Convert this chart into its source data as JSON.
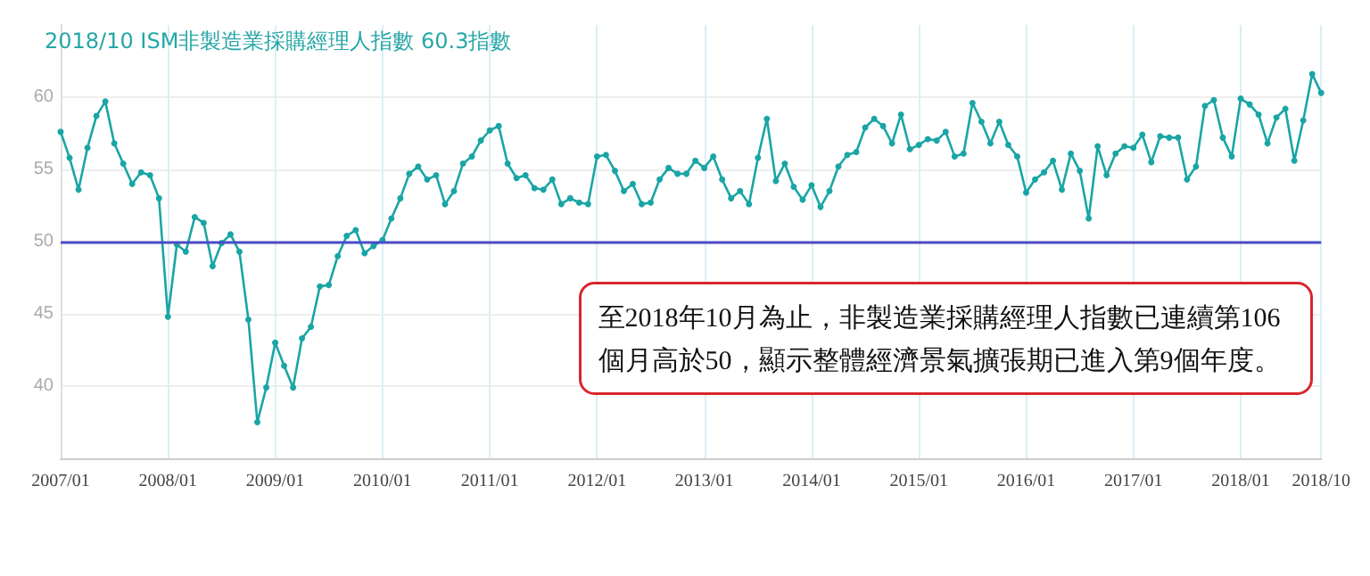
{
  "chart_data": {
    "type": "line",
    "title": "2018/10 ISM非製造業採購經理人指數 60.3指數",
    "categories": [
      "2007/01",
      null,
      null,
      null,
      null,
      null,
      null,
      null,
      null,
      null,
      null,
      null,
      "2008/01",
      null,
      null,
      null,
      null,
      null,
      null,
      null,
      null,
      null,
      null,
      null,
      "2009/01",
      null,
      null,
      null,
      null,
      null,
      null,
      null,
      null,
      null,
      null,
      null,
      "2010/01",
      null,
      null,
      null,
      null,
      null,
      null,
      null,
      null,
      null,
      null,
      null,
      "2011/01",
      null,
      null,
      null,
      null,
      null,
      null,
      null,
      null,
      null,
      null,
      null,
      "2012/01",
      null,
      null,
      null,
      null,
      null,
      null,
      null,
      null,
      null,
      null,
      null,
      "2013/01",
      null,
      null,
      null,
      null,
      null,
      null,
      null,
      null,
      null,
      null,
      null,
      "2014/01",
      null,
      null,
      null,
      null,
      null,
      null,
      null,
      null,
      null,
      null,
      null,
      "2015/01",
      null,
      null,
      null,
      null,
      null,
      null,
      null,
      null,
      null,
      null,
      null,
      "2016/01",
      null,
      null,
      null,
      null,
      null,
      null,
      null,
      null,
      null,
      null,
      null,
      "2017/01",
      null,
      null,
      null,
      null,
      null,
      null,
      null,
      null,
      null,
      null,
      null,
      "2018/01",
      null,
      null,
      null,
      null,
      null,
      null,
      null,
      null,
      "2018/10"
    ],
    "series": [
      {
        "color": "#1aa5a5",
        "values": [
          57.6,
          55.8,
          53.6,
          56.5,
          58.7,
          59.7,
          56.8,
          55.4,
          54.0,
          54.8,
          54.6,
          53.0,
          44.8,
          49.8,
          49.3,
          51.7,
          51.3,
          48.3,
          49.9,
          50.5,
          49.3,
          44.6,
          37.5,
          39.9,
          43.0,
          41.4,
          39.9,
          43.3,
          44.1,
          46.9,
          47.0,
          49.0,
          50.4,
          50.8,
          49.2,
          49.7,
          50.1,
          51.6,
          53.0,
          54.7,
          55.2,
          54.3,
          54.6,
          52.6,
          53.5,
          55.4,
          55.9,
          57.0,
          57.7,
          58.0,
          55.4,
          54.4,
          54.6,
          53.7,
          53.6,
          54.3,
          52.6,
          53.0,
          52.7,
          52.6,
          55.9,
          56.0,
          54.9,
          53.5,
          54.0,
          52.6,
          52.7,
          54.3,
          55.1,
          54.7,
          54.7,
          55.6,
          55.1,
          55.9,
          54.3,
          53.0,
          53.5,
          52.6,
          55.8,
          58.5,
          54.2,
          55.4,
          53.8,
          52.9,
          53.9,
          52.4,
          53.5,
          55.2,
          56.0,
          56.2,
          57.9,
          58.5,
          58.0,
          56.8,
          58.8,
          56.4,
          56.7,
          57.1,
          57.0,
          57.6,
          55.9,
          56.1,
          59.6,
          58.3,
          56.8,
          58.3,
          56.7,
          55.9,
          53.4,
          54.3,
          54.8,
          55.6,
          53.6,
          56.1,
          54.9,
          51.6,
          56.6,
          54.6,
          56.1,
          56.6,
          56.5,
          57.4,
          55.5,
          57.3,
          57.2,
          57.2,
          54.3,
          55.2,
          59.4,
          59.8,
          57.2,
          55.9,
          59.9,
          59.5,
          58.8,
          56.8,
          58.6,
          59.2,
          55.6,
          58.4,
          61.6,
          60.3
        ]
      }
    ],
    "ylim": [
      35,
      65
    ],
    "yticks": [
      40,
      45,
      50,
      55,
      60
    ],
    "grid": true,
    "marker": "circle",
    "line_style": "solid",
    "ref_lines": [
      {
        "axis": "y",
        "value": 50,
        "color": "#4b4bc8"
      }
    ],
    "annotations": [
      "至2018年10月為止，非製造業採購經理人指數已連續第106\n個月高於50，顯示整體經濟景氣擴張期已進入第9個年度。"
    ]
  }
}
